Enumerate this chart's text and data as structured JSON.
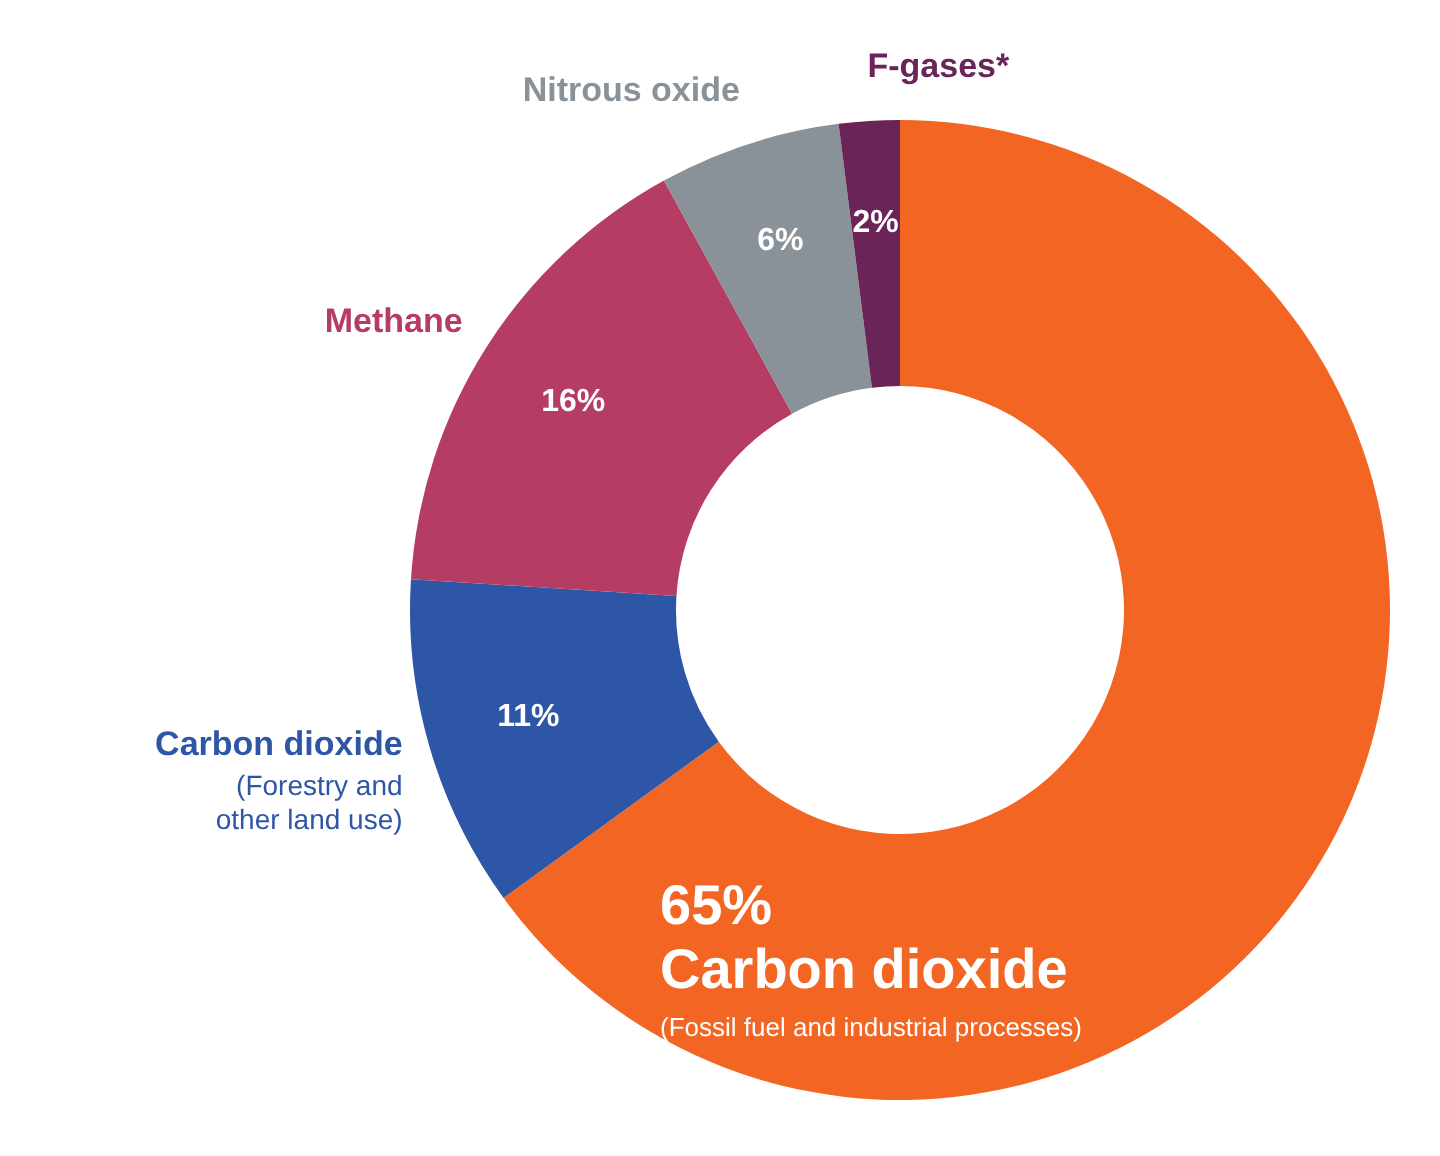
{
  "chart_data": {
    "type": "donut",
    "categories": [
      "Carbon dioxide (Fossil fuel and industrial processes)",
      "Carbon dioxide (Forestry and other land use)",
      "Methane",
      "Nitrous oxide",
      "F-gases*"
    ],
    "values": [
      65,
      11,
      16,
      6,
      2
    ],
    "value_labels": [
      "65%",
      "11%",
      "16%",
      "6%",
      "2%"
    ],
    "colors": [
      "#f26522",
      "#2e56a6",
      "#b53c62",
      "#8a9299",
      "#6b2458"
    ]
  }
}
